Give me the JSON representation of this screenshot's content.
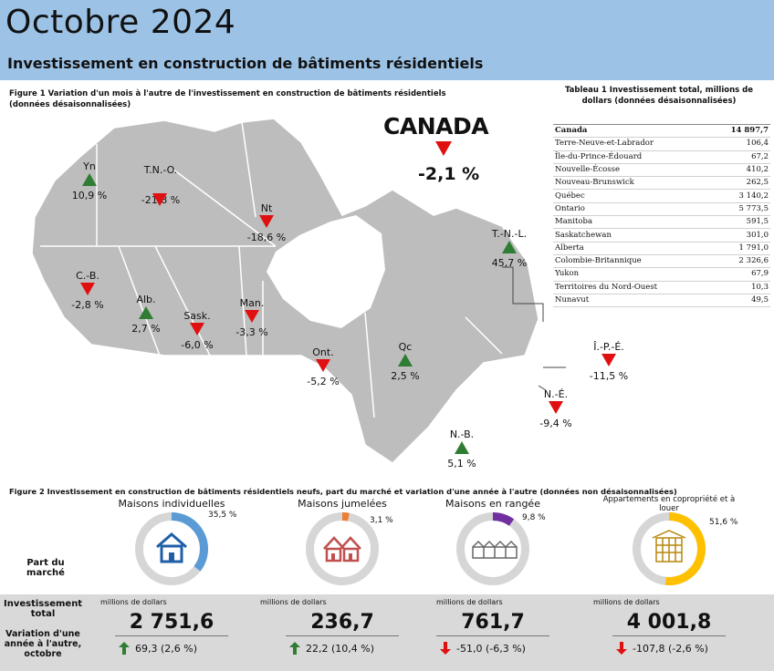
{
  "header": {
    "title": "Octobre 2024",
    "subtitle": "Investissement en construction de bâtiments résidentiels"
  },
  "figure1": {
    "caption": "Figure 1 Variation d'un mois à l'autre de l'investissement en construction de bâtiments résidentiels (données désaisonnalisées)"
  },
  "canada": {
    "label": "CANADA",
    "value": "-2,1 %",
    "direction": "down"
  },
  "provinces": [
    {
      "abbr": "Yn",
      "value": "10,9 %",
      "direction": "up"
    },
    {
      "abbr": "T.N.-O.",
      "value": "-21,8 %",
      "direction": "down"
    },
    {
      "abbr": "Nt",
      "value": "-18,6 %",
      "direction": "down"
    },
    {
      "abbr": "T.-N.-L.",
      "value": "45,7 %",
      "direction": "up"
    },
    {
      "abbr": "C.-B.",
      "value": "-2,8 %",
      "direction": "down"
    },
    {
      "abbr": "Alb.",
      "value": "2,7 %",
      "direction": "up"
    },
    {
      "abbr": "Sask.",
      "value": "-6,0 %",
      "direction": "down"
    },
    {
      "abbr": "Man.",
      "value": "-3,3 %",
      "direction": "down"
    },
    {
      "abbr": "Ont.",
      "value": "-5,2 %",
      "direction": "down"
    },
    {
      "abbr": "Qc",
      "value": "2,5 %",
      "direction": "up"
    },
    {
      "abbr": "Î.-P.-É.",
      "value": "-11,5 %",
      "direction": "down"
    },
    {
      "abbr": "N.-É.",
      "value": "-9,4 %",
      "direction": "down"
    },
    {
      "abbr": "N.-B.",
      "value": "5,1 %",
      "direction": "up"
    }
  ],
  "table1": {
    "caption": "Tableau 1 Investissement total, millions de dollars (données désaisonnalisées)",
    "rows": [
      {
        "name": "Canada",
        "value": "14 897,7"
      },
      {
        "name": "Terre-Neuve-et-Labrador",
        "value": "106,4"
      },
      {
        "name": "Île-du-Prince-Édouard",
        "value": "67,2"
      },
      {
        "name": "Nouvelle-Écosse",
        "value": "410,2"
      },
      {
        "name": "Nouveau-Brunswick",
        "value": "262,5"
      },
      {
        "name": "Québec",
        "value": "3 140,2"
      },
      {
        "name": "Ontario",
        "value": "5 773,5"
      },
      {
        "name": "Manitoba",
        "value": "591,5"
      },
      {
        "name": "Saskatchewan",
        "value": "301,0"
      },
      {
        "name": "Alberta",
        "value": "1 791,0"
      },
      {
        "name": "Colombie-Britannique",
        "value": "2 326,6"
      },
      {
        "name": "Yukon",
        "value": "67,9"
      },
      {
        "name": "Territoires du  Nord-Ouest",
        "value": "10,3"
      },
      {
        "name": "Nunavut",
        "value": "49,5"
      }
    ]
  },
  "figure2": {
    "caption": "Figure 2 Investissement en construction de bâtiments résidentiels neufs, part du marché et variation d'une année à l'autre (données non désaisonnalisées)",
    "row_labels": {
      "share": "Part du marché",
      "total": "Investissement total",
      "yoy": "Variation d'une année à l'autre, octobre"
    },
    "categories": [
      {
        "title": "Maisons individuelles",
        "share_text": "35,5 %",
        "share": 0.355,
        "color": "#5b9bd5",
        "unit": "millions de dollars",
        "total": "2 751,6",
        "change": "69,3 (2,6 %)",
        "direction": "up"
      },
      {
        "title": "Maisons jumelées",
        "share_text": "3,1 %",
        "share": 0.031,
        "color": "#ed7d31",
        "unit": "millions de dollars",
        "total": "236,7",
        "change": "22,2 (10,4 %)",
        "direction": "up"
      },
      {
        "title": "Maisons en rangée",
        "share_text": "9,8 %",
        "share": 0.098,
        "color": "#7030a0",
        "unit": "millions de dollars",
        "total": "761,7",
        "change": "-51,0 (-6,3 %)",
        "direction": "down"
      },
      {
        "title": "Appartements en copropriété et à louer",
        "share_text": "51,6 %",
        "share": 0.516,
        "color": "#ffc000",
        "unit": "millions de dollars",
        "total": "4 001,8",
        "change": "-107,8 (-2,6 %)",
        "direction": "down"
      }
    ]
  },
  "colors": {
    "up": "#2e7d32",
    "down": "#e01010",
    "header": "#9cc3e6",
    "map": "#bdbdbd"
  }
}
